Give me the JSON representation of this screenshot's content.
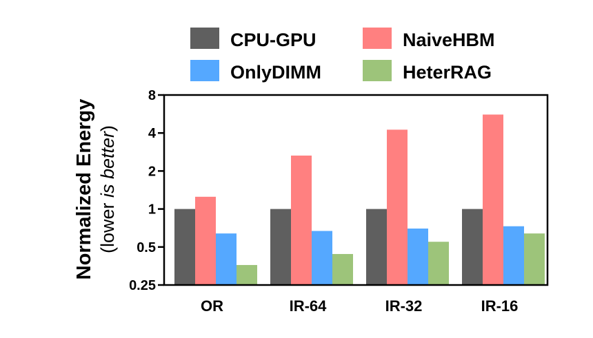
{
  "chart_data": {
    "type": "bar",
    "title": "",
    "ylabel": "Normalized Energy",
    "ylabel_sub_prefix": "(lower ",
    "ylabel_sub_italic": "is better",
    "ylabel_sub_suffix": ")",
    "xlabel": "",
    "y_scale": "log2",
    "ylim": [
      0.25,
      8
    ],
    "y_ticks": [
      0.25,
      0.5,
      1,
      2,
      4,
      8
    ],
    "y_tick_labels": [
      "0.25",
      "0.5",
      "1",
      "2",
      "4",
      "8"
    ],
    "categories": [
      "OR",
      "IR-64",
      "IR-32",
      "IR-16"
    ],
    "legend_position": "top",
    "grid": false,
    "series": [
      {
        "name": "CPU-GPU",
        "color": "#5f5f5f",
        "values": [
          1.0,
          1.0,
          1.0,
          1.0
        ]
      },
      {
        "name": "NaiveHBM",
        "color": "#ff8080",
        "values": [
          1.25,
          2.65,
          4.25,
          5.6
        ]
      },
      {
        "name": "OnlyDIMM",
        "color": "#55a8ff",
        "values": [
          0.64,
          0.67,
          0.7,
          0.73
        ]
      },
      {
        "name": "HeterRAG",
        "color": "#9dc47a",
        "values": [
          0.36,
          0.44,
          0.55,
          0.64
        ]
      }
    ]
  }
}
